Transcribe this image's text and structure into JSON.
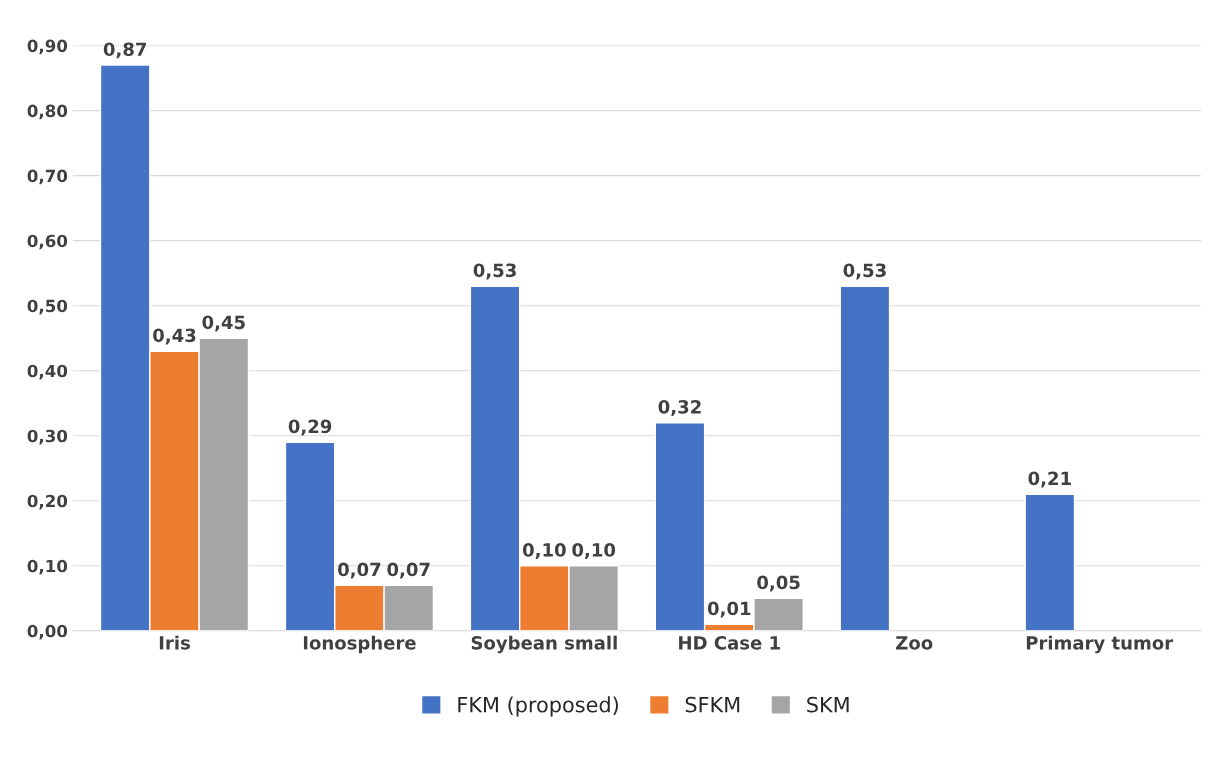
{
  "chart_data": {
    "type": "bar",
    "categories": [
      "Iris",
      "Ionosphere",
      "Soybean small",
      "HD Case 1",
      "Zoo",
      "Primary tumor"
    ],
    "series": [
      {
        "name": "FKM (proposed)",
        "color": "#4472c4",
        "values": [
          0.87,
          0.29,
          0.53,
          0.32,
          0.53,
          0.21
        ],
        "value_labels": [
          "0,87",
          "0,29",
          "0,53",
          "0,32",
          "0,53",
          "0,21"
        ]
      },
      {
        "name": "SFKM",
        "color": "#ed7d31",
        "values": [
          0.43,
          0.07,
          0.1,
          0.01,
          null,
          null
        ],
        "value_labels": [
          "0,43",
          "0,07",
          "0,10",
          "0,01",
          null,
          null
        ]
      },
      {
        "name": "SKM",
        "color": "#a5a5a5",
        "values": [
          0.45,
          0.07,
          0.1,
          0.05,
          null,
          null
        ],
        "value_labels": [
          "0,45",
          "0,07",
          "0,10",
          "0,05",
          null,
          null
        ]
      }
    ],
    "ylim": [
      0,
      0.9
    ],
    "yticks": [
      {
        "value": 0,
        "label": "0,00"
      },
      {
        "value": 0.1,
        "label": "0,10"
      },
      {
        "value": 0.2,
        "label": "0,20"
      },
      {
        "value": 0.3,
        "label": "0,30"
      },
      {
        "value": 0.4,
        "label": "0,40"
      },
      {
        "value": 0.5,
        "label": "0,50"
      },
      {
        "value": 0.6,
        "label": "0,60"
      },
      {
        "value": 0.7,
        "label": "0,70"
      },
      {
        "value": 0.8,
        "label": "0,80"
      },
      {
        "value": 0.9,
        "label": "0,90"
      }
    ],
    "grid": "y",
    "legend": "bottom"
  }
}
